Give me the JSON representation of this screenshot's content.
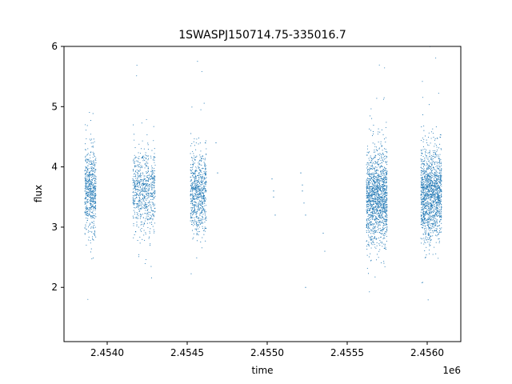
{
  "chart_data": {
    "type": "scatter",
    "title": "1SWASPJ150714.75-335016.7",
    "xlabel": "time",
    "ylabel": "flux",
    "x_offset_label": "1e6",
    "xlim": [
      2.45373,
      2.45621
    ],
    "ylim": [
      1.1,
      6.0
    ],
    "grid": false,
    "legend": "none",
    "marker_color": "#1f77b4",
    "x_ticks": [
      {
        "value": 2.454,
        "label": "2.4540"
      },
      {
        "value": 2.4545,
        "label": "2.4545"
      },
      {
        "value": 2.455,
        "label": "2.4550"
      },
      {
        "value": 2.4555,
        "label": "2.4555"
      },
      {
        "value": 2.456,
        "label": "2.4560"
      }
    ],
    "y_ticks": [
      {
        "value": 2,
        "label": "2"
      },
      {
        "value": 3,
        "label": "3"
      },
      {
        "value": 4,
        "label": "4"
      },
      {
        "value": 5,
        "label": "5"
      },
      {
        "value": 6,
        "label": "6"
      }
    ],
    "clusters": [
      {
        "x_range": [
          2.45386,
          2.45393
        ],
        "center": 3.6,
        "spread": 0.45,
        "n": 600
      },
      {
        "x_range": [
          2.45416,
          2.4543
        ],
        "center": 3.6,
        "spread": 0.45,
        "n": 700
      },
      {
        "x_range": [
          2.45452,
          2.45462
        ],
        "center": 3.55,
        "spread": 0.45,
        "n": 700
      },
      {
        "x_range": [
          2.45562,
          2.45575
        ],
        "center": 3.5,
        "spread": 0.5,
        "n": 1400
      },
      {
        "x_range": [
          2.45596,
          2.45609
        ],
        "center": 3.55,
        "spread": 0.5,
        "n": 1400
      }
    ],
    "sparse_points": [
      {
        "x": 2.45503,
        "y": 3.8
      },
      {
        "x": 2.45504,
        "y": 3.6
      },
      {
        "x": 2.45504,
        "y": 3.5
      },
      {
        "x": 2.45505,
        "y": 3.2
      },
      {
        "x": 2.45521,
        "y": 3.9
      },
      {
        "x": 2.45522,
        "y": 3.7
      },
      {
        "x": 2.45522,
        "y": 3.6
      },
      {
        "x": 2.45523,
        "y": 3.4
      },
      {
        "x": 2.45524,
        "y": 3.2
      },
      {
        "x": 2.45524,
        "y": 2.0
      },
      {
        "x": 2.45535,
        "y": 2.9
      },
      {
        "x": 2.45536,
        "y": 2.6
      },
      {
        "x": 2.45468,
        "y": 4.4
      },
      {
        "x": 2.45469,
        "y": 3.9
      }
    ]
  }
}
